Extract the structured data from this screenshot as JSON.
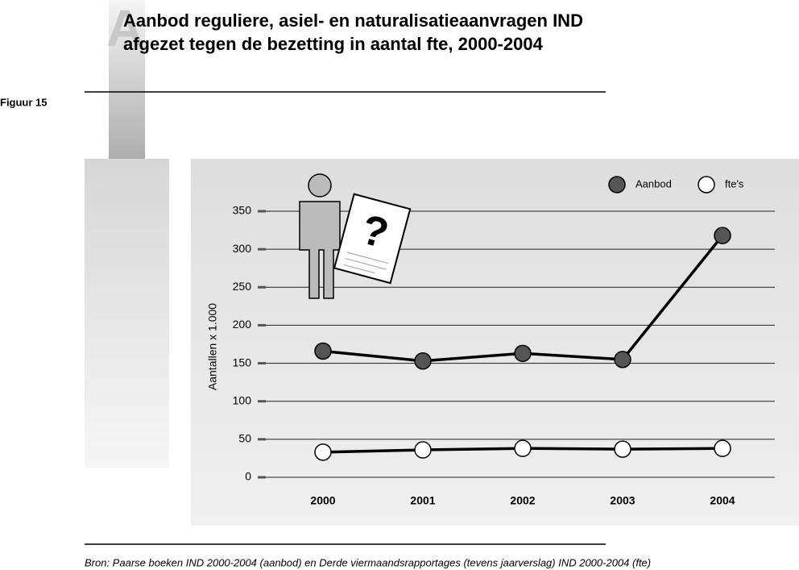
{
  "figure_label": "Figuur 15",
  "source": "Bron: Paarse boeken IND 2000-2004 (aanbod) en Derde viermaandsrapportages (tevens jaarverslag) IND 2000-2004 (fte)",
  "chart_data": {
    "type": "line",
    "title": [
      "Aanbod reguliere, asiel- en naturalisatieaanvragen IND",
      "afgezet tegen de bezetting in aantal fte, 2000-2004"
    ],
    "y_label": "Aantallen x 1.000",
    "categories": [
      "2000",
      "2001",
      "2002",
      "2003",
      "2004"
    ],
    "series": [
      {
        "name": "Aanbod",
        "color": "#555555",
        "values": [
          166,
          153,
          163,
          155,
          318
        ]
      },
      {
        "name": "fte's",
        "color": "#ffffff",
        "values": [
          33,
          36,
          38,
          37,
          38
        ]
      }
    ],
    "ylim": [
      0,
      350
    ],
    "yticks": [
      0,
      50,
      100,
      150,
      200,
      250,
      300,
      350
    ],
    "grid": true,
    "legend": "top-right"
  }
}
